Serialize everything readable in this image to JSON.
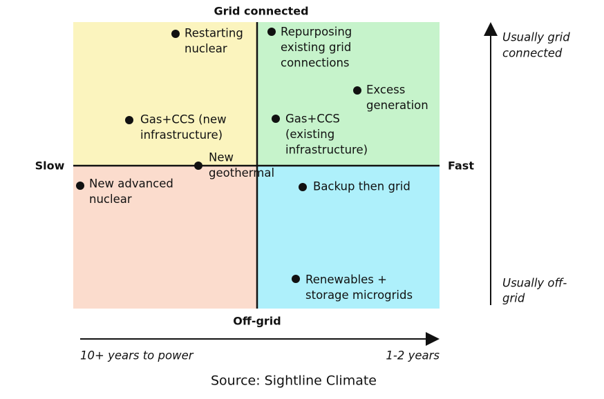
{
  "title": "Grid connected",
  "bottom_label": "Off-grid",
  "left_label": "Slow",
  "right_label": "Fast",
  "vertical_axis": {
    "top": [
      "Usually grid",
      "connected"
    ],
    "bottom": [
      "Usually off-",
      "grid"
    ]
  },
  "horizontal_axis": {
    "left": "10+ years to power",
    "right": "1-2 years"
  },
  "source": "Source: Sightline Climate",
  "nodes": [
    {
      "lines": [
        "Restarting",
        "nuclear"
      ]
    },
    {
      "lines": [
        "Repurposing",
        "existing grid",
        "connections"
      ]
    },
    {
      "lines": [
        "Excess",
        "generation"
      ]
    },
    {
      "lines": [
        "Gas+CCS (new",
        "infrastructure)"
      ]
    },
    {
      "lines": [
        "Gas+CCS",
        "(existing",
        "infrastructure)"
      ]
    },
    {
      "lines": [
        "New",
        "geothermal"
      ]
    },
    {
      "lines": [
        "New advanced",
        "nuclear"
      ]
    },
    {
      "lines": [
        "Backup then grid"
      ]
    },
    {
      "lines": [
        "Renewables +",
        "storage microgrids"
      ]
    }
  ]
}
